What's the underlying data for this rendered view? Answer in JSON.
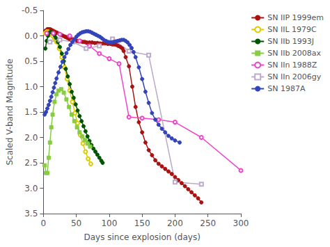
{
  "chart_data": {
    "type": "line",
    "xlabel": "Days since explosion (days)",
    "ylabel": "Scaled V-band Magnitude",
    "xlim": [
      0,
      300
    ],
    "ylim": [
      3.5,
      -0.5
    ],
    "xticks": [
      0,
      50,
      100,
      150,
      200,
      250,
      300
    ],
    "yticks": [
      -0.5,
      {
        "value": 0.0,
        "label": "0.0"
      },
      0.5,
      {
        "value": 1.0,
        "label": "1.0"
      },
      1.5,
      {
        "value": 2.0,
        "label": "2.0"
      },
      2.5,
      {
        "value": 3.0,
        "label": "3.0"
      },
      3.5
    ],
    "grid": false,
    "legend": "upper right",
    "series": [
      {
        "name": "SN IIP 1999em",
        "color": "#aa1111",
        "marker": "circle",
        "x": [
          3,
          6,
          8,
          10,
          12,
          15,
          18,
          21,
          24,
          27,
          30,
          33,
          36,
          39,
          42,
          45,
          48,
          51,
          54,
          57,
          60,
          63,
          66,
          70,
          74,
          78,
          82,
          86,
          90,
          94,
          98,
          102,
          105,
          108,
          111,
          114,
          117,
          120,
          122,
          125,
          130,
          135,
          140,
          145,
          150,
          155,
          160,
          165,
          170,
          175,
          180,
          185,
          190,
          195,
          200,
          205,
          210,
          215,
          220,
          225,
          230,
          235,
          240
        ],
        "values": [
          -0.1,
          -0.13,
          -0.13,
          -0.13,
          -0.12,
          -0.1,
          -0.08,
          -0.06,
          -0.04,
          -0.02,
          0.0,
          0.02,
          0.04,
          0.06,
          0.07,
          0.08,
          0.09,
          0.1,
          0.11,
          0.11,
          0.12,
          0.12,
          0.13,
          0.13,
          0.13,
          0.14,
          0.14,
          0.15,
          0.15,
          0.15,
          0.16,
          0.16,
          0.17,
          0.17,
          0.18,
          0.2,
          0.22,
          0.25,
          0.3,
          0.42,
          0.6,
          1.0,
          1.4,
          1.7,
          1.9,
          2.1,
          2.25,
          2.35,
          2.45,
          2.52,
          2.57,
          2.62,
          2.67,
          2.72,
          2.78,
          2.84,
          2.9,
          2.96,
          3.02,
          3.08,
          3.14,
          3.2,
          3.28
        ]
      },
      {
        "name": "SN IIL 1979C",
        "color": "#ddcc00",
        "marker": "open_circle",
        "x": [
          3,
          5,
          7,
          9,
          11,
          14,
          17,
          20,
          24,
          28,
          32,
          36,
          40,
          44,
          48,
          52,
          56,
          60,
          64,
          68,
          72
        ],
        "values": [
          -0.05,
          -0.08,
          -0.08,
          -0.07,
          -0.04,
          0.0,
          0.05,
          0.12,
          0.25,
          0.42,
          0.62,
          0.85,
          1.08,
          1.3,
          1.52,
          1.72,
          1.95,
          2.12,
          2.28,
          2.42,
          2.52
        ]
      },
      {
        "name": "SN IIb 1993J",
        "color": "#005500",
        "marker": "circle",
        "x": [
          3,
          5,
          7,
          9,
          11,
          13,
          15,
          17,
          19,
          22,
          25,
          28,
          31,
          34,
          37,
          40,
          43,
          46,
          49,
          52,
          55,
          58,
          61,
          64,
          67,
          70,
          73,
          76,
          79,
          82,
          85,
          88,
          90
        ],
        "values": [
          0.25,
          0.1,
          0.0,
          -0.06,
          -0.08,
          -0.07,
          -0.04,
          -0.01,
          0.04,
          0.12,
          0.22,
          0.35,
          0.5,
          0.65,
          0.8,
          0.95,
          1.1,
          1.22,
          1.35,
          1.47,
          1.58,
          1.68,
          1.78,
          1.88,
          1.98,
          2.07,
          2.15,
          2.22,
          2.28,
          2.34,
          2.4,
          2.46,
          2.5
        ]
      },
      {
        "name": "SN IIb 2008ax",
        "color": "#88cc44",
        "marker": "square",
        "x": [
          2,
          4,
          6,
          8,
          10,
          12,
          14,
          17,
          20,
          23,
          27,
          31,
          35,
          39,
          43,
          47,
          51,
          55,
          59,
          63,
          67,
          71
        ],
        "values": [
          2.55,
          2.7,
          2.7,
          2.4,
          2.1,
          1.8,
          1.55,
          1.3,
          1.15,
          1.08,
          1.05,
          1.12,
          1.25,
          1.4,
          1.55,
          1.68,
          1.8,
          1.9,
          1.98,
          2.05,
          2.12,
          2.18
        ]
      },
      {
        "name": "SN IIn 1988Z",
        "color": "#ee44cc",
        "marker": "open_circle",
        "x": [
          5,
          15,
          25,
          40,
          55,
          70,
          85,
          100,
          115,
          130,
          150,
          175,
          200,
          240,
          300
        ],
        "values": [
          -0.05,
          -0.05,
          -0.03,
          0.0,
          0.1,
          0.2,
          0.35,
          0.45,
          0.55,
          1.6,
          1.62,
          1.65,
          1.7,
          2.0,
          2.65
        ]
      },
      {
        "name": "SN IIn 2006gy",
        "color": "#bbaacc",
        "marker": "open_square",
        "x": [
          10,
          25,
          45,
          65,
          85,
          105,
          130,
          160,
          200,
          240
        ],
        "values": [
          0.12,
          0.08,
          0.12,
          0.25,
          0.2,
          0.06,
          0.3,
          0.38,
          2.88,
          2.92
        ]
      },
      {
        "name": "SN 1987A",
        "color": "#3344bb",
        "marker": "circle",
        "x": [
          2,
          4,
          6,
          8,
          10,
          12,
          14,
          16,
          18,
          20,
          23,
          26,
          29,
          32,
          35,
          38,
          41,
          44,
          47,
          50,
          53,
          56,
          59,
          62,
          65,
          68,
          71,
          74,
          77,
          80,
          83,
          86,
          89,
          92,
          95,
          98,
          101,
          104,
          107,
          110,
          113,
          116,
          119,
          122,
          125,
          128,
          131,
          134,
          137,
          140,
          145,
          150,
          155,
          160,
          165,
          170,
          175,
          180,
          185,
          190,
          195,
          200,
          207
        ],
        "values": [
          1.55,
          1.5,
          1.43,
          1.36,
          1.28,
          1.2,
          1.11,
          1.02,
          0.93,
          0.84,
          0.72,
          0.61,
          0.51,
          0.42,
          0.34,
          0.26,
          0.18,
          0.12,
          0.07,
          0.02,
          -0.02,
          -0.05,
          -0.07,
          -0.08,
          -0.09,
          -0.09,
          -0.08,
          -0.06,
          -0.04,
          -0.02,
          0.0,
          0.02,
          0.05,
          0.08,
          0.1,
          0.12,
          0.13,
          0.13,
          0.12,
          0.11,
          0.1,
          0.09,
          0.08,
          0.08,
          0.1,
          0.13,
          0.18,
          0.24,
          0.32,
          0.42,
          0.62,
          0.85,
          1.1,
          1.32,
          1.52,
          1.65,
          1.75,
          1.83,
          1.9,
          1.97,
          2.02,
          2.06,
          2.1
        ]
      }
    ]
  }
}
